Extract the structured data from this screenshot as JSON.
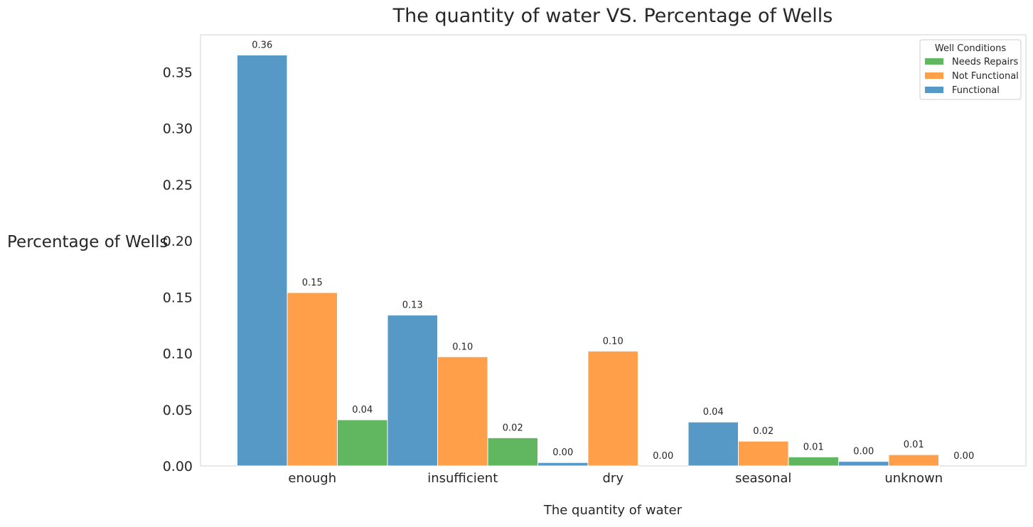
{
  "chart_data": {
    "type": "bar",
    "title": "The quantity of water VS. Percentage of Wells",
    "xlabel": "The quantity of water",
    "ylabel": "Percentage of Wells",
    "categories": [
      "enough",
      "insufficient",
      "dry",
      "seasonal",
      "unknown"
    ],
    "series": [
      {
        "name": "Functional",
        "color": "#5698c6",
        "values": [
          0.365,
          0.134,
          0.003,
          0.039,
          0.004
        ]
      },
      {
        "name": "Not Functional",
        "color": "#ff9f4a",
        "values": [
          0.154,
          0.097,
          0.102,
          0.022,
          0.01
        ]
      },
      {
        "name": "Needs Repairs",
        "color": "#60b760",
        "values": [
          0.041,
          0.025,
          0.0,
          0.008,
          0.0
        ]
      }
    ],
    "data_labels": [
      [
        "0.36",
        "0.13",
        "0.00",
        "0.04",
        "0.00"
      ],
      [
        "0.15",
        "0.10",
        "0.10",
        "0.02",
        "0.01"
      ],
      [
        "0.04",
        "0.02",
        "0.00",
        "0.01",
        "0.00"
      ]
    ],
    "ylim": [
      0,
      0.383
    ],
    "yticks": [
      0.0,
      0.05,
      0.1,
      0.15,
      0.2,
      0.25,
      0.3,
      0.35
    ],
    "ytick_labels": [
      "0.00",
      "0.05",
      "0.10",
      "0.15",
      "0.20",
      "0.25",
      "0.30",
      "0.35"
    ],
    "grid": false,
    "legend": {
      "title": "Well Conditions",
      "position": "top-right",
      "order": [
        "Needs Repairs",
        "Not Functional",
        "Functional"
      ]
    }
  }
}
